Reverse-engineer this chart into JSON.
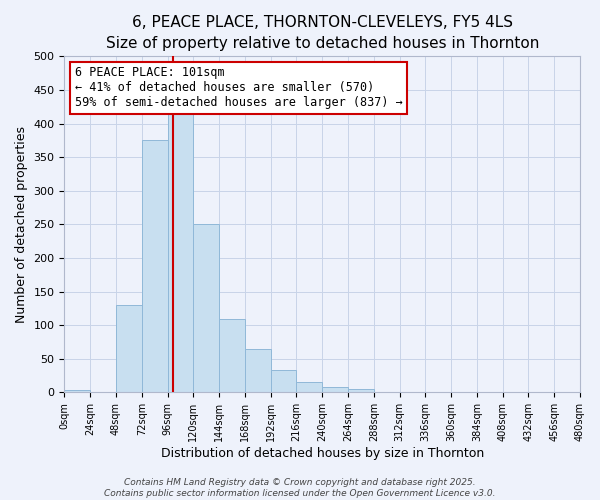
{
  "title_line1": "6, PEACE PLACE, THORNTON-CLEVELEYS, FY5 4LS",
  "title_line2": "Size of property relative to detached houses in Thornton",
  "xlabel": "Distribution of detached houses by size in Thornton",
  "ylabel": "Number of detached properties",
  "bar_edges": [
    0,
    24,
    48,
    72,
    96,
    120,
    144,
    168,
    192,
    216,
    240,
    264,
    288,
    312,
    336,
    360,
    384,
    408,
    432,
    456,
    480
  ],
  "bar_heights": [
    3,
    0,
    130,
    375,
    420,
    250,
    110,
    65,
    33,
    15,
    8,
    5,
    0,
    0,
    0,
    0,
    0,
    0,
    0,
    0
  ],
  "bar_color": "#c8dff0",
  "bar_edgecolor": "#90b8d8",
  "bar_linewidth": 0.7,
  "vline_x": 101,
  "vline_color": "#cc0000",
  "annotation_text": "6 PEACE PLACE: 101sqm\n← 41% of detached houses are smaller (570)\n59% of semi-detached houses are larger (837) →",
  "annotation_box_edgecolor": "#cc0000",
  "annotation_fontsize": 8.5,
  "ylim": [
    0,
    500
  ],
  "yticks": [
    0,
    50,
    100,
    150,
    200,
    250,
    300,
    350,
    400,
    450,
    500
  ],
  "xtick_labels": [
    "0sqm",
    "24sqm",
    "48sqm",
    "72sqm",
    "96sqm",
    "120sqm",
    "144sqm",
    "168sqm",
    "192sqm",
    "216sqm",
    "240sqm",
    "264sqm",
    "288sqm",
    "312sqm",
    "336sqm",
    "360sqm",
    "384sqm",
    "408sqm",
    "432sqm",
    "456sqm",
    "480sqm"
  ],
  "grid_color": "#c8d4e8",
  "background_color": "#eef2fb",
  "footer_line1": "Contains HM Land Registry data © Crown copyright and database right 2025.",
  "footer_line2": "Contains public sector information licensed under the Open Government Licence v3.0.",
  "footer_fontsize": 6.5,
  "title1_fontsize": 11,
  "title2_fontsize": 9.5
}
